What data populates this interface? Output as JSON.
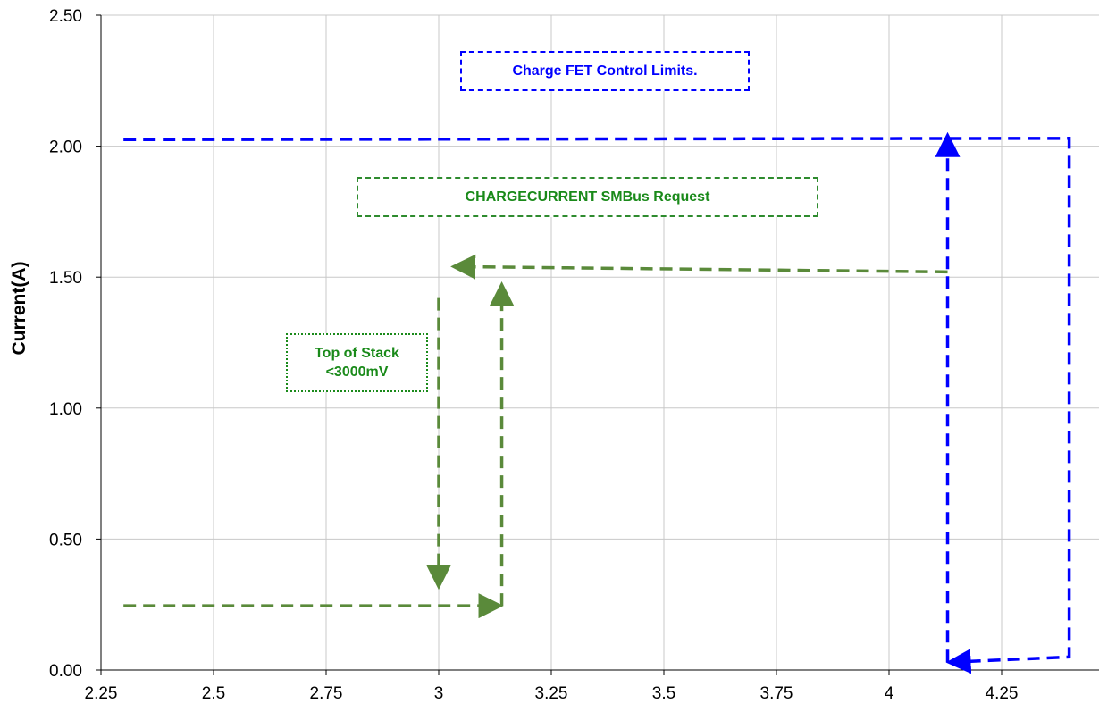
{
  "chart_data": {
    "type": "line",
    "xlim": [
      2.25,
      4.45
    ],
    "ylim": [
      0,
      2.5
    ],
    "x_ticks": [
      "2.25",
      "2.5",
      "2.75",
      "3",
      "3.25",
      "3.5",
      "3.75",
      "4",
      "4.25",
      "4.5"
    ],
    "y_ticks": [
      "0.00",
      "0.50",
      "1.00",
      "1.50",
      "2.00",
      "2.50"
    ],
    "xlabel": "",
    "ylabel": "Current(A)",
    "grid": true,
    "colors": {
      "fet": "#0000ff",
      "smbus": "#5a8a3a"
    },
    "series": [
      {
        "role": "fet",
        "points": [
          [
            2.3,
            2.025
          ],
          [
            4.4,
            2.03
          ],
          [
            4.4,
            0.05
          ],
          [
            4.14,
            0.03
          ]
        ],
        "arrow_end": true
      },
      {
        "role": "fet",
        "points": [
          [
            4.13,
            0.03
          ],
          [
            4.13,
            2.03
          ]
        ],
        "arrow_end": true
      },
      {
        "role": "smbus",
        "points": [
          [
            4.13,
            1.52
          ],
          [
            3.04,
            1.54
          ]
        ],
        "arrow_end": true
      },
      {
        "role": "smbus",
        "points": [
          [
            2.3,
            0.245
          ],
          [
            3.13,
            0.245
          ]
        ],
        "arrow_end": true
      },
      {
        "role": "smbus",
        "points": [
          [
            3.14,
            0.245
          ],
          [
            3.14,
            1.46
          ]
        ],
        "arrow_end": true
      },
      {
        "role": "smbus",
        "points": [
          [
            3.0,
            1.42
          ],
          [
            3.0,
            0.33
          ]
        ],
        "arrow_end": true
      }
    ],
    "annotations": {
      "fet_limits": "Charge FET Control Limits.",
      "smbus_request": "CHARGECURRENT SMBus Request",
      "stack_line1": "Top of Stack",
      "stack_line2": "<3000mV"
    }
  }
}
